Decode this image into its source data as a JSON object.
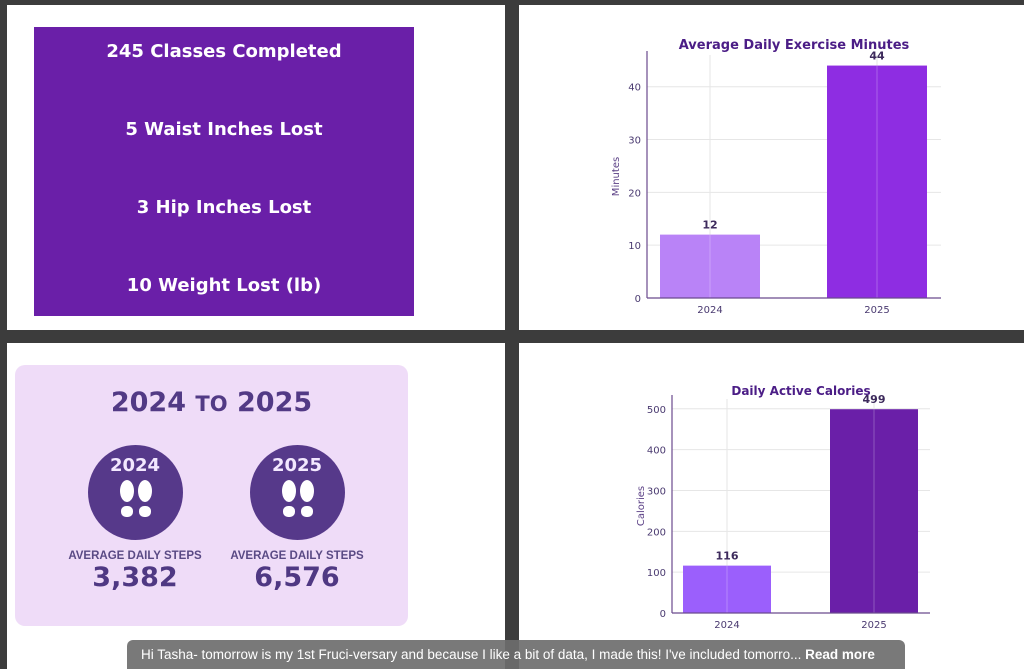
{
  "stats": [
    "245  Classes Completed",
    "5  Waist Inches Lost",
    "3  Hip Inches Lost",
    "10  Weight Lost (lb)"
  ],
  "steps": {
    "title_start": "2024",
    "title_to": "TO",
    "title_end": "2025",
    "items": [
      {
        "year": "2024",
        "label": "AVERAGE DAILY STEPS",
        "value": "3,382"
      },
      {
        "year": "2025",
        "label": "AVERAGE DAILY STEPS",
        "value": "6,576"
      }
    ],
    "circle_color": "#56398a",
    "background": "#efdcf8"
  },
  "chart_data": [
    {
      "type": "bar",
      "title": "Average Daily Exercise Minutes",
      "ylabel": "Minutes",
      "xlabel": "",
      "categories": [
        "2024",
        "2025"
      ],
      "values": [
        12,
        44
      ],
      "data_labels": [
        "12",
        "44"
      ],
      "colors": [
        "#b983f7",
        "#8e2de2"
      ],
      "yticks": [
        0,
        10,
        20,
        30,
        40
      ],
      "ylim": [
        0,
        46
      ],
      "grid": true
    },
    {
      "type": "bar",
      "title": "Daily Active Calories",
      "ylabel": "Calories",
      "xlabel": "",
      "categories": [
        "2024",
        "2025"
      ],
      "values": [
        116,
        499
      ],
      "data_labels": [
        "116",
        "499"
      ],
      "colors": [
        "#9b5ffc",
        "#6a1fa8"
      ],
      "yticks": [
        0,
        100,
        200,
        300,
        400,
        500
      ],
      "ylim": [
        0,
        524
      ],
      "grid": true
    }
  ],
  "caption": {
    "text": "Hi Tasha- tomorrow is my 1st Fruci-versary and because I like a bit of data, I made this! I've included tomorro...",
    "read_more": "Read more"
  }
}
